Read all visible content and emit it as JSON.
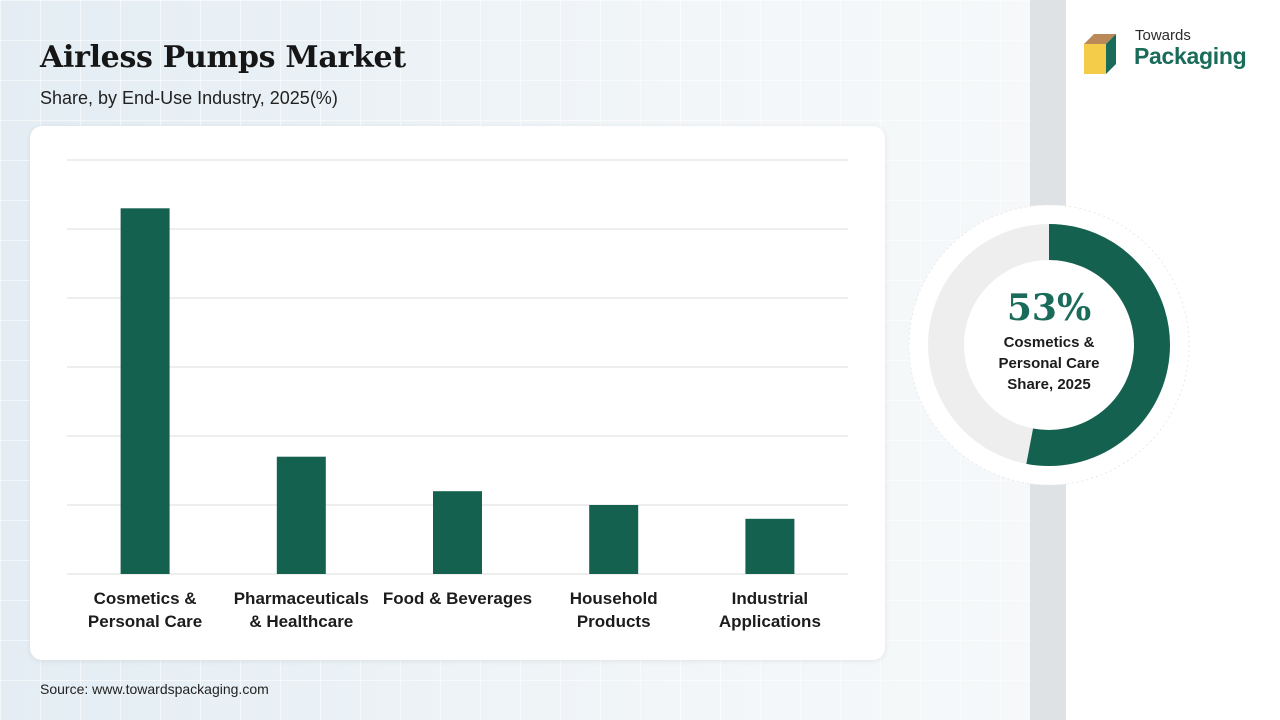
{
  "header": {
    "title": "Airless Pumps Market",
    "subtitle": "Share, by End-Use Industry, 2025(%)"
  },
  "source": "Source: www.towardspackaging.com",
  "brand": {
    "line1": "Towards",
    "line2": "Packaging",
    "icon": "package-box-icon",
    "color": "#1a6b5a"
  },
  "highlight": {
    "value": "53%",
    "caption_lines": [
      "Cosmetics &",
      "Personal Care",
      "Share, 2025"
    ],
    "fraction": 0.53,
    "color": "#14614f",
    "track_color": "#eeeeee"
  },
  "chart_data": {
    "type": "bar",
    "categories": [
      [
        "Cosmetics &",
        "Personal Care"
      ],
      [
        "Pharmaceuticals",
        "& Healthcare"
      ],
      [
        "Food & Beverages"
      ],
      [
        "Household",
        "Products"
      ],
      [
        "Industrial",
        "Applications"
      ]
    ],
    "values": [
      53,
      17,
      12,
      10,
      8
    ],
    "ylim": [
      0,
      60
    ],
    "grid": true,
    "bar_color": "#14614f",
    "xlabel": "",
    "ylabel": ""
  }
}
